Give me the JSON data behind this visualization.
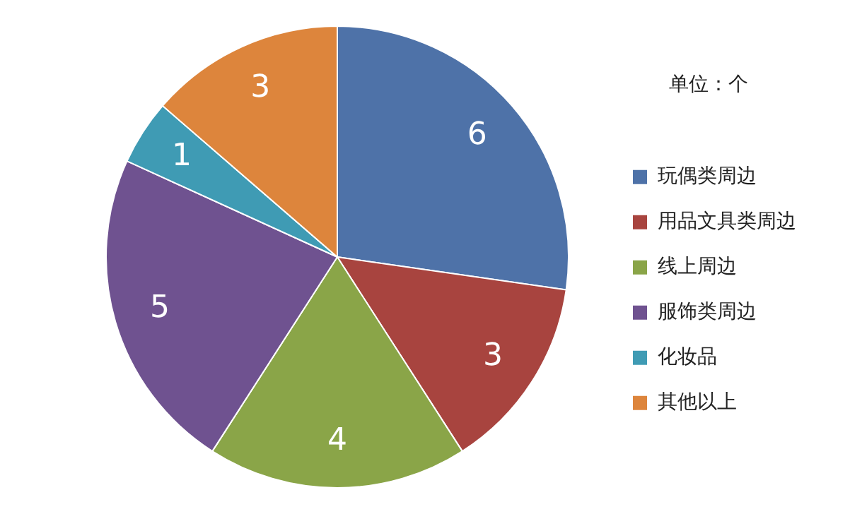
{
  "chart_data": {
    "type": "pie",
    "legend_title": "单位：个",
    "categories": [
      "玩偶类周边",
      "用品文具类周边",
      "线上周边",
      "服饰类周边",
      "化妆品",
      "其他以上"
    ],
    "values": [
      6,
      3,
      4,
      5,
      1,
      3
    ],
    "colors": [
      "#4e72a8",
      "#a8443f",
      "#8aa548",
      "#6f5290",
      "#3f9bb4",
      "#dd853c"
    ],
    "data_labels": true,
    "legend": "right"
  }
}
